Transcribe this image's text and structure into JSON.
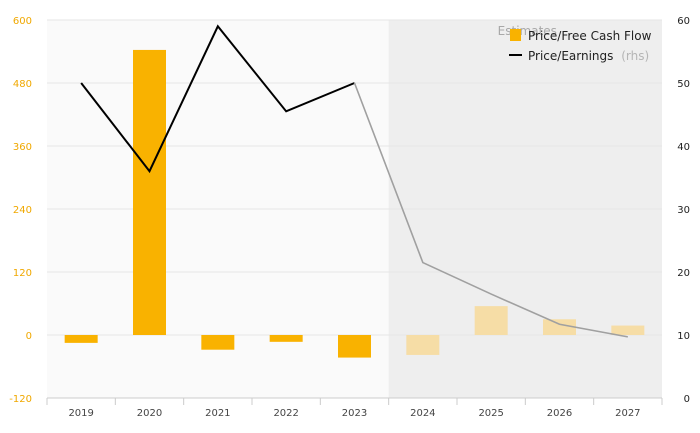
{
  "chart_data": {
    "type": "bar",
    "categories": [
      "2019",
      "2020",
      "2021",
      "2022",
      "2023",
      "2024",
      "2025",
      "2026",
      "2027"
    ],
    "estimates_from": "2024",
    "estimates_label": "Estimates",
    "series": [
      {
        "name": "Price/Free Cash Flow",
        "type": "bar",
        "axis": "left",
        "values": [
          -15,
          543,
          -28,
          -13,
          -43,
          -38,
          55,
          30,
          18
        ]
      },
      {
        "name": "Price/Earnings",
        "name_suffix": "(rhs)",
        "type": "line",
        "axis": "right",
        "values": [
          50,
          36,
          59,
          45.5,
          50,
          21.5,
          16.5,
          11.7,
          9.7
        ]
      }
    ],
    "y_left": {
      "min": -120,
      "max": 600,
      "ticks": [
        -120,
        0,
        120,
        240,
        360,
        480,
        600
      ]
    },
    "y_right": {
      "min": 0,
      "max": 60,
      "ticks": [
        0,
        10,
        20,
        30,
        40,
        50,
        60
      ]
    },
    "grid": true,
    "legend_position": "top-right",
    "colors": {
      "bar_actual": "#f9b200",
      "bar_estimate": "#f6dda6",
      "line_actual": "#000000",
      "line_estimate": "#a0a0a0",
      "left_axis_text": "#f0a800",
      "estimate_band": "#eeeeee",
      "plot_background": "#fafafa"
    }
  }
}
